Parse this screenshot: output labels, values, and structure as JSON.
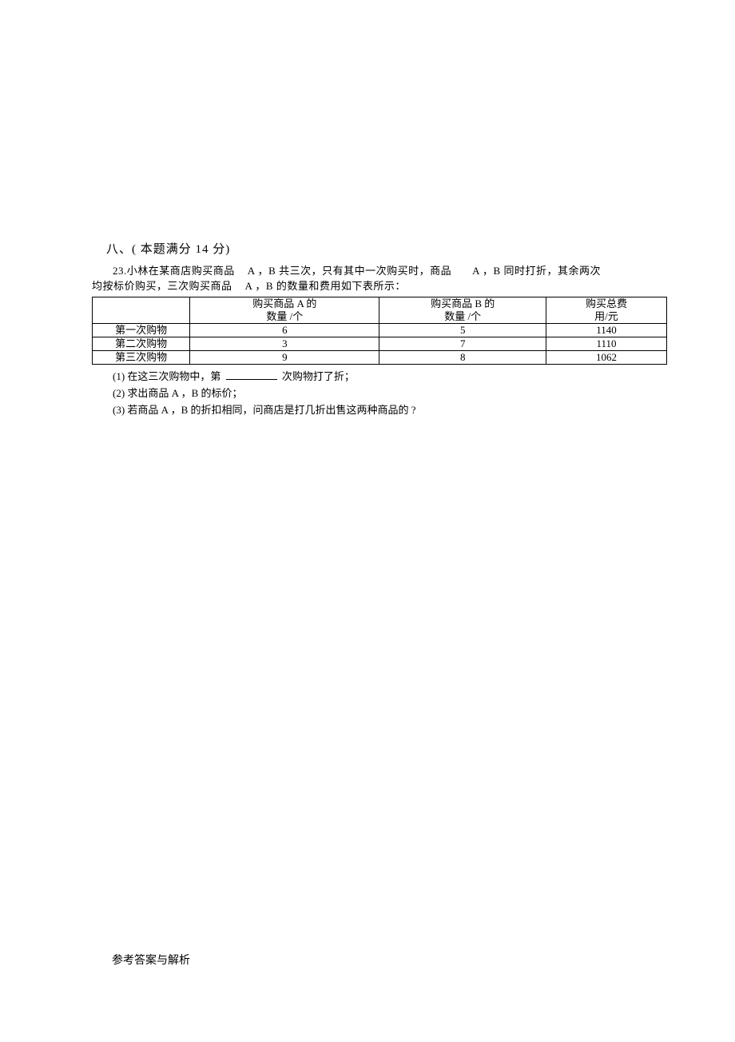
{
  "doc": {
    "section_header": "八、( 本题满分 14 分)",
    "problem_number": "23.",
    "intro_l1_a": "小林在某商店购买商品",
    "intro_l1_b": "A ，B 共三次，只有其中一次购买时，商品",
    "intro_l1_c": "A ，B 同时打折，其余两次",
    "intro_l2_a": "均按标价购买，三次购买商品",
    "intro_l2_b": "A ，B 的数量和费用如下表所示：",
    "footer": "参考答案与解析"
  },
  "table": {
    "columns": [
      {
        "line1": "",
        "line2": ""
      },
      {
        "line1": "购买商品  A 的",
        "line2": "数量 /个"
      },
      {
        "line1": "购买商品  B 的",
        "line2": "数量 /个"
      },
      {
        "line1": "购买总费",
        "line2": "用/元"
      }
    ],
    "rows": [
      {
        "label": "第一次购物",
        "a": "6",
        "b": "5",
        "cost": "1140"
      },
      {
        "label": "第二次购物",
        "a": "3",
        "b": "7",
        "cost": "1110"
      },
      {
        "label": "第三次购物",
        "a": "9",
        "b": "8",
        "cost": "1062"
      }
    ],
    "border_color": "#000000",
    "background": "#ffffff"
  },
  "questions": {
    "q1_a": "(1) 在这三次购物中，第",
    "q1_b": "次购物打了折；",
    "q2": "(2) 求出商品  A ，B 的标价；",
    "q3": "(3) 若商品  A ，B 的折扣相同，问商店是打几折出售这两种商品的 ?"
  },
  "style": {
    "page_bg": "#ffffff",
    "text_color": "#000000",
    "base_fontsize": 13,
    "header_fontsize": 15
  }
}
